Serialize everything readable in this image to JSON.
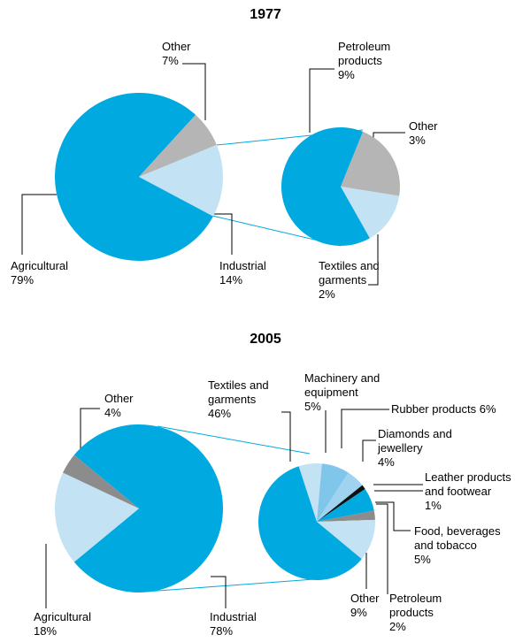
{
  "chart_data": [
    {
      "type": "pie",
      "title": "1977",
      "categories": [
        "Industrial",
        "Agricultural",
        "Other"
      ],
      "values": [
        14,
        79,
        7
      ],
      "value_labels": [
        "14%",
        "79%",
        "7%"
      ],
      "colors": [
        "#c3e2f3",
        "#00a9e0",
        "#b5b5b5"
      ],
      "breakdown": {
        "categories": [
          "Other",
          "Textiles and garments",
          "Petroleum products"
        ],
        "values": [
          3,
          2,
          9
        ],
        "value_labels": [
          "3%",
          "2%",
          "9%"
        ],
        "colors": [
          "#b5b5b5",
          "#c3e2f3",
          "#00a9e0"
        ]
      }
    },
    {
      "type": "pie",
      "title": "2005",
      "categories": [
        "Industrial",
        "Agricultural",
        "Other"
      ],
      "values": [
        78,
        18,
        4
      ],
      "value_labels": [
        "78%",
        "18%",
        "4%"
      ],
      "colors": [
        "#00a9e0",
        "#c3e2f3",
        "#8c8c8c"
      ],
      "breakdown": {
        "categories": [
          "Machinery and equipment",
          "Rubber products",
          "Diamonds and jewellery",
          "Leather products and footwear",
          "Food, beverages and tobacco",
          "Petroleum products",
          "Other",
          "Textiles and garments"
        ],
        "values": [
          5,
          6,
          4,
          1,
          5,
          2,
          9,
          46
        ],
        "value_labels": [
          "5%",
          "6%",
          "4%",
          "1%",
          "5%",
          "2%",
          "9%",
          "46%"
        ],
        "colors": [
          "#c3e2f3",
          "#7fc6ea",
          "#9fd3ef",
          "#111111",
          "#00a9e0",
          "#8c8c8c",
          "#c3e2f3",
          "#00a9e0"
        ]
      }
    }
  ]
}
